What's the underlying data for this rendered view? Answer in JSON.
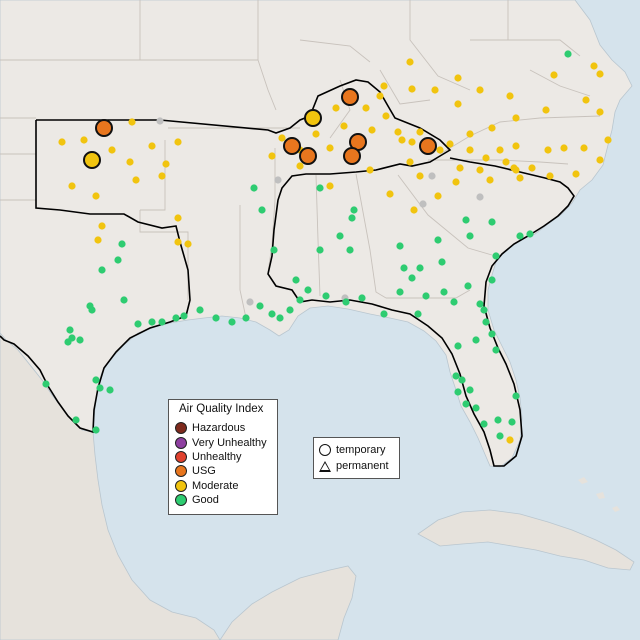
{
  "legend": {
    "title": "Air Quality Index",
    "items": [
      {
        "label": "Hazardous",
        "color": "#7e2a1d"
      },
      {
        "label": "Very Unhealthy",
        "color": "#8e3fa0"
      },
      {
        "label": "Unhealthy",
        "color": "#e0412e"
      },
      {
        "label": "USG",
        "color": "#e8761e"
      },
      {
        "label": "Moderate",
        "color": "#f1c40f"
      },
      {
        "label": "Good",
        "color": "#2ecc71"
      }
    ]
  },
  "monitor_types": {
    "temporary": "temporary",
    "permanent": "permanent"
  },
  "colors": {
    "water": "#d5e3ec",
    "land": "#ece9e5",
    "border": "#c8c2bc",
    "region_outline": "#000000",
    "no_data": "#bfbfbf"
  },
  "region": "Southeastern United States"
}
